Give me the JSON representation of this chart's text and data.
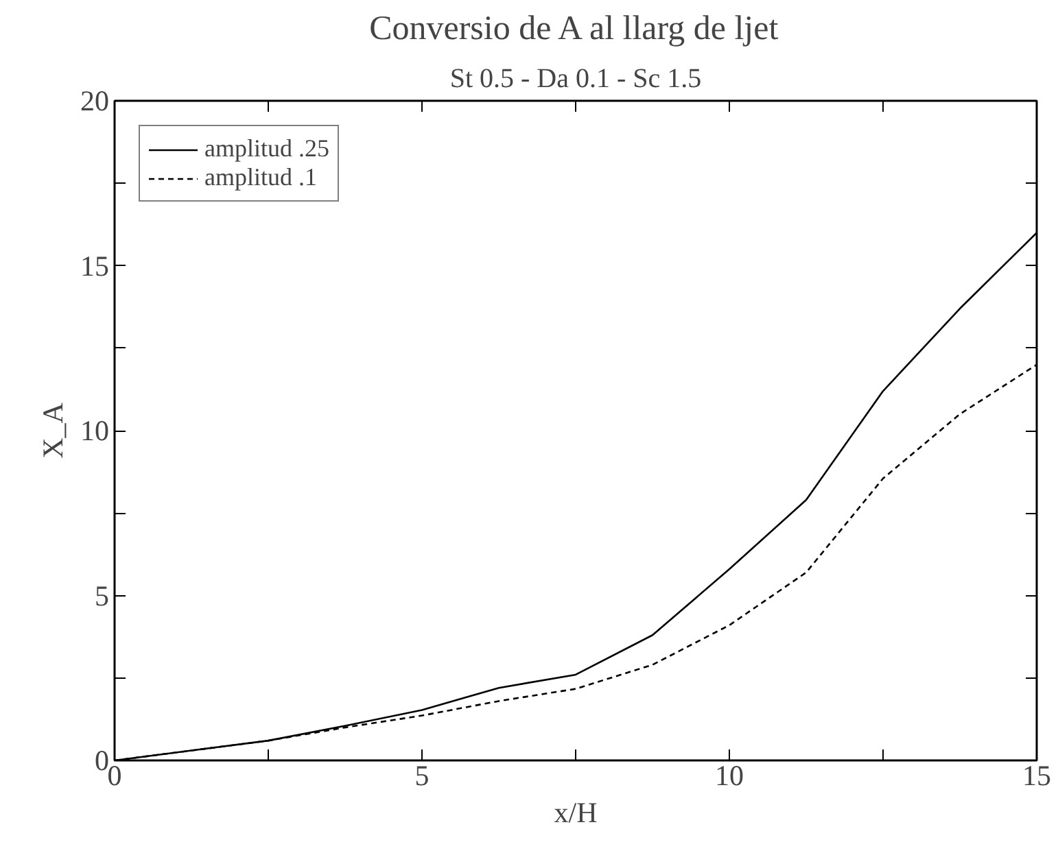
{
  "chart_data": {
    "type": "line",
    "title": "Conversio de A al llarg de ljet",
    "subtitle": "St 0.5 - Da 0.1 - Sc 1.5",
    "xlabel": "x/H",
    "ylabel": "X_A",
    "x": [
      0,
      1.25,
      2.5,
      3.75,
      5,
      6.25,
      7.5,
      8.75,
      10,
      11.25,
      12.5,
      13.75,
      15
    ],
    "series": [
      {
        "name": "amplitud .25",
        "color": "#000000",
        "line_style": "solid",
        "values": [
          0,
          0.3,
          0.6,
          1.05,
          1.53,
          2.2,
          2.6,
          3.8,
          5.8,
          7.9,
          11.2,
          13.7,
          16.0
        ]
      },
      {
        "name": "amplitud .1",
        "color": "#000000",
        "line_style": "dashed",
        "values": [
          0,
          0.3,
          0.6,
          1.0,
          1.36,
          1.8,
          2.17,
          2.9,
          4.1,
          5.7,
          8.55,
          10.5,
          12.0
        ]
      }
    ],
    "xlim": [
      0,
      15
    ],
    "ylim": [
      0,
      20
    ],
    "xticks": [
      0,
      {
        "value": 2.5,
        "label": null
      },
      5,
      {
        "value": 7.5,
        "label": null
      },
      10,
      {
        "value": 12.5,
        "label": null
      },
      15
    ],
    "yticks": [
      0,
      {
        "value": 2.5,
        "label": null
      },
      5,
      {
        "value": 7.5,
        "label": null
      },
      10,
      {
        "value": 12.5,
        "label": null
      },
      15,
      {
        "value": 17.5,
        "label": null
      },
      20
    ],
    "grid": false,
    "legend": "top left",
    "marker": "none"
  }
}
